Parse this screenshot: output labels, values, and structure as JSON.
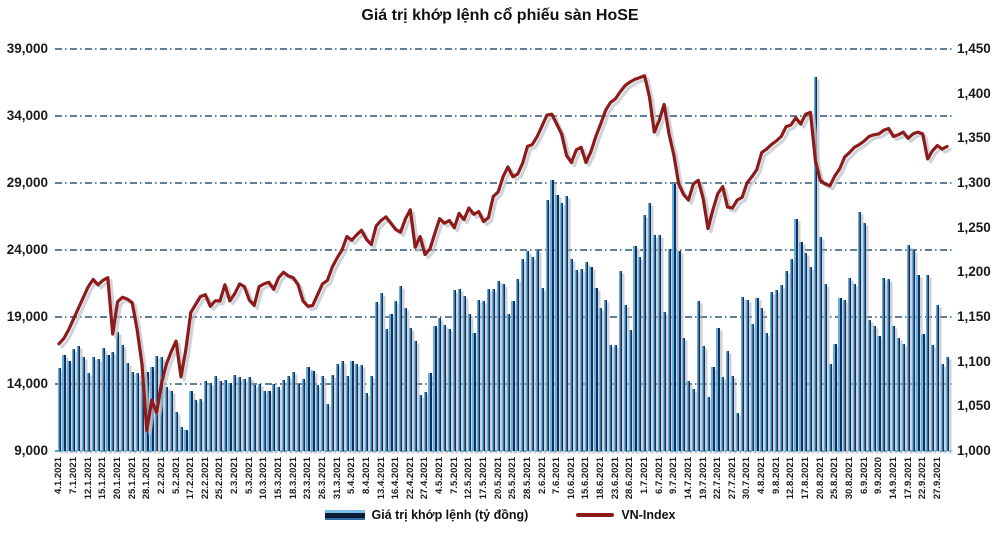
{
  "title": "Giá trị khớp lệnh cổ phiếu sàn HoSE",
  "legend": {
    "bar_label": "Giá trị khớp lệnh (tỷ đồng)",
    "line_label": "VN-Index"
  },
  "colors": {
    "bar_light": "#66b0dd",
    "bar_dark": "#0f3060",
    "line": "#8e1b1b",
    "line_shadow": "#c0c4ca",
    "grid": "#51718f",
    "bottom_axis": "#3f9fc4",
    "text": "#1a1a1a"
  },
  "chart_data": {
    "type": "bar",
    "title": "Giá trị khớp lệnh cổ phiếu sàn HoSE",
    "bars_per_label": 3,
    "x_labels": [
      "4.1.2021",
      "7.1.2021",
      "12.1.2021",
      "15.1.2021",
      "20.1.2021",
      "25.1.2021",
      "28.1.2021",
      "2.2.2021",
      "5.2.2021",
      "17.2.2021",
      "22.2.2021",
      "25.2.2021",
      "2.3.2021",
      "5.3.2021",
      "10.3.2021",
      "15.3.2021",
      "18.3.2021",
      "23.3.2021",
      "26.3.2021",
      "31.3.2021",
      "5.4.2021",
      "8.4.2021",
      "13.4.2021",
      "16.4.2021",
      "22.4.2021",
      "27.4.2021",
      "4.5.2021",
      "7.5.2021",
      "12.5.2021",
      "17.5.2021",
      "20.5.2021",
      "25.5.2021",
      "28.5.2021",
      "2.6.2021",
      "7.6.2021",
      "10.6.2021",
      "15.6.2021",
      "18.6.2021",
      "23.6.2021",
      "28.6.2021",
      "1.7.2021",
      "6.7.2021",
      "9.7.2021",
      "14.7.2021",
      "19.7.2021",
      "22.7.2021",
      "27.7.2021",
      "30.7.2021",
      "4.8.2021",
      "9.8.2021",
      "12.8.2021",
      "17.8.2021",
      "20.8.2021",
      "25.8.2021",
      "30.8.2021",
      "6.9.2021",
      "9.9.2020",
      "14.9.2021",
      "17.9.2021",
      "22.9.2021",
      "27.9.2021"
    ],
    "left_axis": {
      "min": 9000,
      "max": 39000,
      "step": 5000,
      "ticks": [
        "39,000",
        "34,000",
        "29,000",
        "24,000",
        "19,000",
        "14,000",
        "9,000"
      ]
    },
    "right_axis": {
      "min": 1000,
      "max": 1450,
      "step": 50,
      "ticks": [
        "1,450",
        "1,400",
        "1,350",
        "1,300",
        "1,250",
        "1,200",
        "1,150",
        "1,100",
        "1,050",
        "1,000"
      ]
    },
    "series": [
      {
        "name": "Giá trị khớp lệnh (tỷ đồng)",
        "type": "bar",
        "axis": "left",
        "values": [
          15200,
          16200,
          15700,
          16600,
          16800,
          16000,
          14800,
          16000,
          15900,
          16700,
          16200,
          16400,
          17900,
          16900,
          15600,
          14900,
          14800,
          14200,
          14900,
          15300,
          16100,
          16000,
          13800,
          13500,
          11900,
          10800,
          10600,
          13500,
          12800,
          12900,
          14200,
          14100,
          14600,
          14200,
          14300,
          14100,
          14700,
          14500,
          14400,
          14500,
          13900,
          14000,
          13500,
          13500,
          14000,
          13800,
          14300,
          14600,
          14900,
          14000,
          14400,
          15300,
          15000,
          13900,
          14600,
          12500,
          14700,
          15500,
          15700,
          14600,
          15700,
          15500,
          15400,
          13300,
          14600,
          20100,
          20800,
          18100,
          19200,
          20200,
          21300,
          19700,
          18200,
          17200,
          13200,
          13400,
          14800,
          18300,
          18900,
          18400,
          18100,
          21000,
          21100,
          20600,
          19200,
          17800,
          20300,
          20200,
          21100,
          21100,
          21700,
          21500,
          19200,
          20200,
          21800,
          23300,
          23900,
          23500,
          24000,
          21200,
          27700,
          29200,
          28100,
          27500,
          28000,
          23300,
          22500,
          22600,
          23100,
          22700,
          21200,
          19700,
          20300,
          16900,
          16900,
          22400,
          19900,
          18000,
          24300,
          23500,
          26600,
          27500,
          25100,
          25100,
          19400,
          24100,
          28900,
          23900,
          17400,
          14200,
          13600,
          20200,
          16800,
          13000,
          15300,
          18200,
          14500,
          16500,
          14600,
          11800,
          20500,
          20300,
          18500,
          20400,
          19700,
          17800,
          20900,
          21000,
          21400,
          22400,
          23300,
          26300,
          24600,
          23800,
          22700,
          36900,
          25000,
          21500,
          15500,
          17000,
          20400,
          20300,
          21900,
          21500,
          26800,
          26000,
          18800,
          18300,
          17600,
          21900,
          21800,
          18300,
          17400,
          17000,
          24400,
          24000,
          22100,
          17700,
          22100,
          16900,
          19900,
          15500,
          16000
        ]
      },
      {
        "name": "VN-Index",
        "type": "line",
        "axis": "right",
        "values": [
          1120,
          1126,
          1136,
          1148,
          1160,
          1172,
          1184,
          1192,
          1186,
          1191,
          1194,
          1131,
          1167,
          1172,
          1170,
          1166,
          1136,
          1097,
          1023,
          1057,
          1043,
          1076,
          1097,
          1111,
          1123,
          1083,
          1114,
          1155,
          1164,
          1173,
          1175,
          1162,
          1168,
          1168,
          1186,
          1168,
          1176,
          1187,
          1184,
          1169,
          1163,
          1184,
          1187,
          1189,
          1181,
          1194,
          1200,
          1196,
          1194,
          1186,
          1168,
          1162,
          1163,
          1175,
          1187,
          1191,
          1206,
          1216,
          1225,
          1240,
          1236,
          1242,
          1247,
          1237,
          1231,
          1252,
          1258,
          1262,
          1255,
          1248,
          1245,
          1260,
          1270,
          1228,
          1240,
          1220,
          1226,
          1243,
          1260,
          1255,
          1258,
          1250,
          1266,
          1259,
          1272,
          1265,
          1268,
          1257,
          1261,
          1285,
          1290,
          1307,
          1318,
          1307,
          1310,
          1322,
          1341,
          1343,
          1352,
          1364,
          1376,
          1377,
          1366,
          1355,
          1331,
          1323,
          1337,
          1340,
          1323,
          1335,
          1352,
          1366,
          1381,
          1390,
          1394,
          1402,
          1409,
          1413,
          1416,
          1418,
          1420,
          1396,
          1357,
          1370,
          1388,
          1355,
          1331,
          1299,
          1287,
          1281,
          1299,
          1303,
          1283,
          1249,
          1270,
          1288,
          1296,
          1273,
          1272,
          1281,
          1284,
          1300,
          1307,
          1315,
          1334,
          1338,
          1343,
          1347,
          1352,
          1363,
          1365,
          1373,
          1366,
          1377,
          1379,
          1325,
          1303,
          1299,
          1297,
          1308,
          1316,
          1329,
          1334,
          1340,
          1343,
          1347,
          1352,
          1354,
          1355,
          1359,
          1361,
          1352,
          1354,
          1357,
          1350,
          1355,
          1357,
          1355,
          1327,
          1336,
          1342,
          1338,
          1341
        ]
      }
    ]
  }
}
